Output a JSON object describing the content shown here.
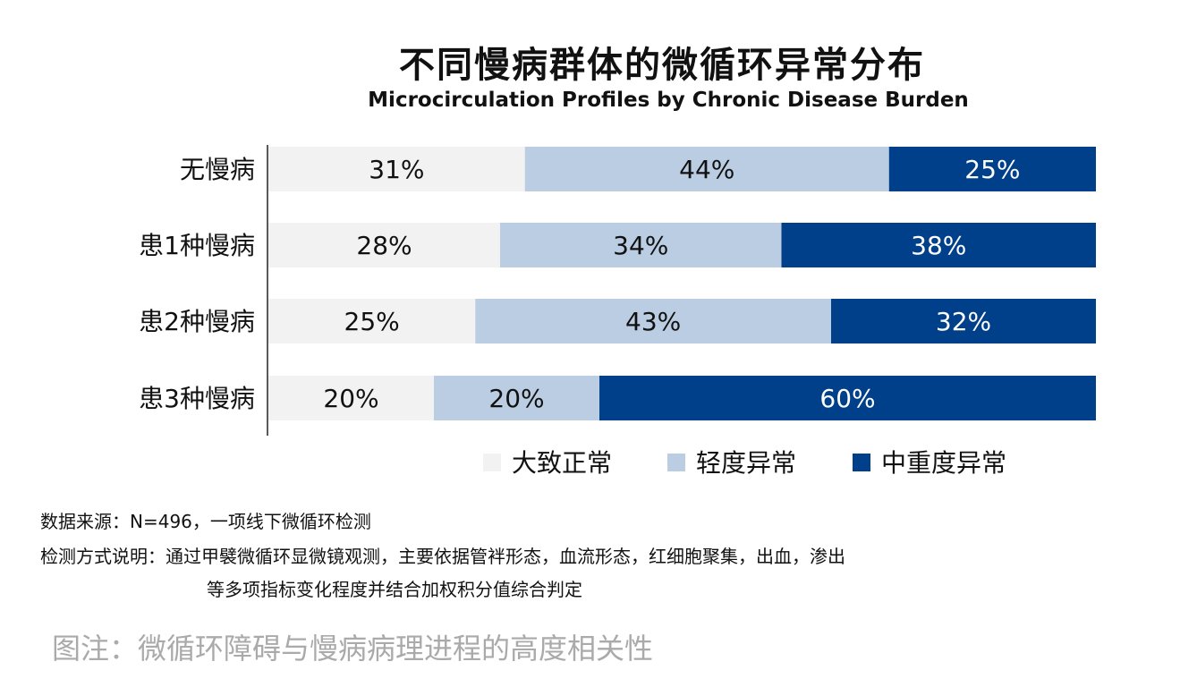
{
  "chart_data": {
    "type": "bar",
    "orientation": "horizontal",
    "stacked": true,
    "title": "不同慢病群体的微循环异常分布",
    "subtitle": "Microcirculation Profiles by Chronic Disease Burden",
    "categories": [
      "无慢病",
      "患1种慢病",
      "患2种慢病",
      "患3种慢病"
    ],
    "series": [
      {
        "name": "大致正常",
        "color": "#f2f2f2",
        "values": [
          31,
          28,
          25,
          20
        ]
      },
      {
        "name": "轻度异常",
        "color": "#bacde2",
        "values": [
          44,
          34,
          43,
          20
        ]
      },
      {
        "name": "中重度异常",
        "color": "#003f8a",
        "values": [
          25,
          38,
          32,
          60
        ]
      }
    ],
    "value_suffix": "%",
    "xlim": [
      0,
      100
    ],
    "legend_position": "bottom-right",
    "grid": false
  },
  "footer": {
    "source": "数据来源：N=496，一项线下微循环检测",
    "method_line1": "检测方式说明：通过甲襞微循环显微镜观测，主要依据管袢形态，血流形态，红细胞聚集，出血，渗出",
    "method_line2": "等多项指标变化程度并结合加权积分值综合判定",
    "note": "图注：微循环障碍与慢病病理进程的高度相关性"
  }
}
